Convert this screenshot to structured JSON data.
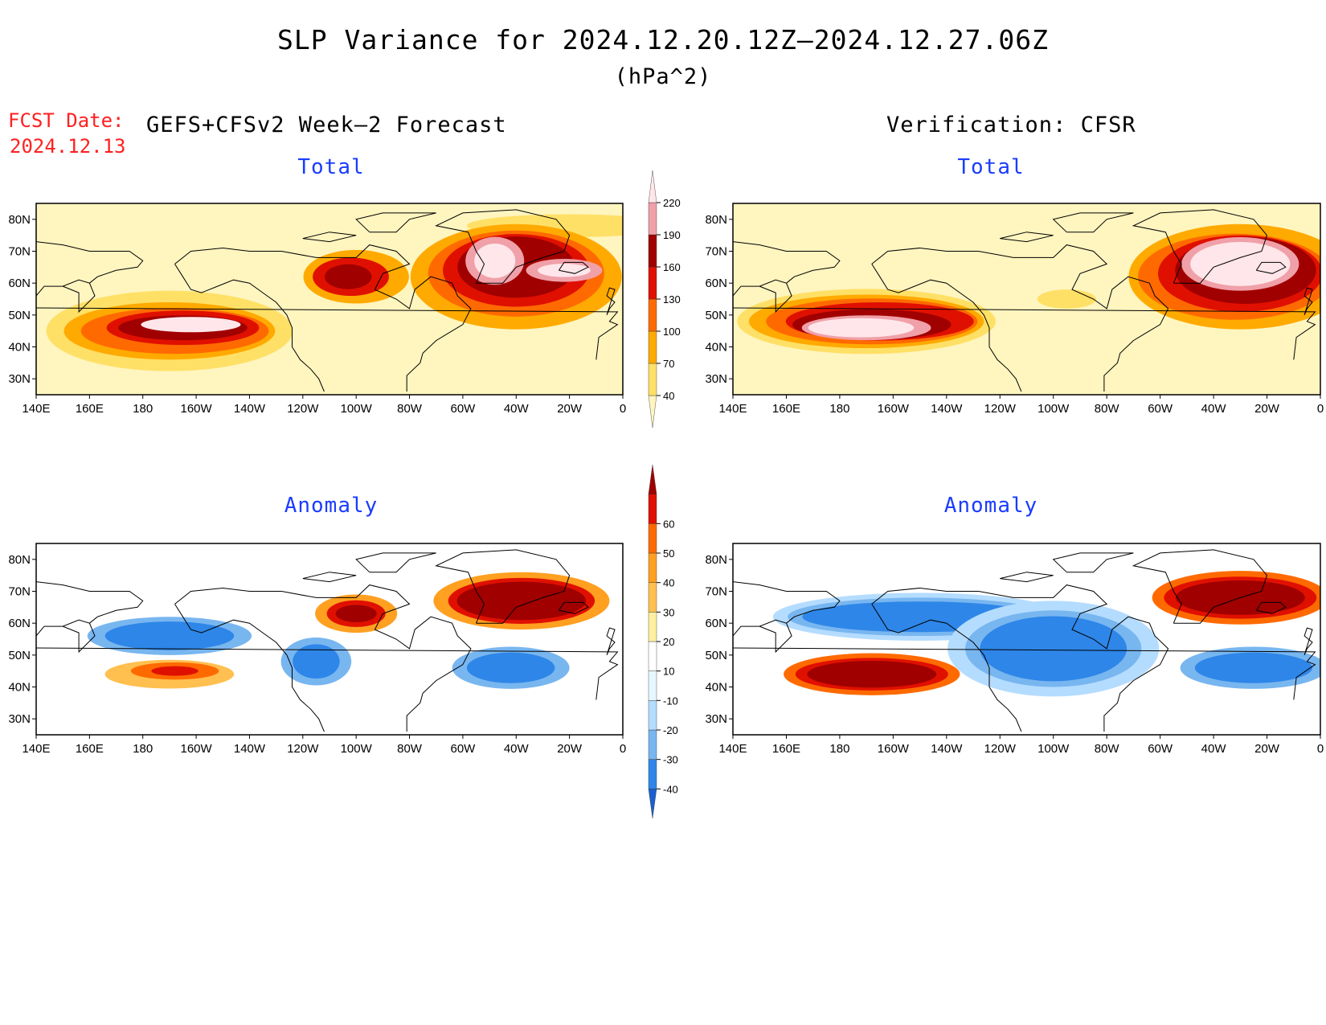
{
  "title": "SLP Variance for 2024.12.20.12Z–2024.12.27.06Z",
  "units": "(hPa^2)",
  "fcst_date_label": "FCST Date:",
  "fcst_date_value": "2024.12.13",
  "forecast_heading": "GEFS+CFSv2 Week–2 Forecast",
  "verification_heading": "Verification: CFSR",
  "panel_titles": {
    "total": "Total",
    "anomaly": "Anomaly"
  },
  "lat_labels": [
    "80N",
    "70N",
    "60N",
    "50N",
    "40N",
    "30N"
  ],
  "lon_labels": [
    "140E",
    "160E",
    "180",
    "160W",
    "140W",
    "120W",
    "100W",
    "80W",
    "60W",
    "40W",
    "20W",
    "0"
  ],
  "colorbars": {
    "total": {
      "levels": [
        "40",
        "70",
        "100",
        "130",
        "160",
        "190",
        "220"
      ],
      "colors": [
        "#fff5bf",
        "#ffe066",
        "#ffaa00",
        "#ff6a00",
        "#e01000",
        "#a00000",
        "#f0a0a8",
        "#ffe6ea"
      ]
    },
    "anomaly": {
      "levels": [
        "-40",
        "-30",
        "-20",
        "-10",
        "10",
        "20",
        "30",
        "40",
        "50",
        "60"
      ],
      "colors": [
        "#1a60d0",
        "#2e86e8",
        "#78b6f0",
        "#b4dcff",
        "#e6f8ff",
        "#ffffff",
        "#fff0a0",
        "#ffc050",
        "#ffa020",
        "#ff6a00",
        "#e01000",
        "#a00000"
      ]
    }
  },
  "palette": {
    "land_outline": "#000000",
    "title_red": "#ff2020",
    "subtitle_blue": "#1a3cff"
  },
  "fields": {
    "fc_total": [
      {
        "lon": -20,
        "lat": 78,
        "w": 0.35,
        "h": 0.12,
        "level": 1
      },
      {
        "lon": -170,
        "lat": 45,
        "w": 0.42,
        "h": 0.42,
        "level": 1
      },
      {
        "lon": -170,
        "lat": 45,
        "w": 0.36,
        "h": 0.3,
        "level": 2
      },
      {
        "lon": -168,
        "lat": 45,
        "w": 0.32,
        "h": 0.24,
        "level": 3
      },
      {
        "lon": -165,
        "lat": 46,
        "w": 0.26,
        "h": 0.18,
        "level": 4
      },
      {
        "lon": -165,
        "lat": 46,
        "w": 0.22,
        "h": 0.13,
        "level": 5
      },
      {
        "lon": -162,
        "lat": 47,
        "w": 0.17,
        "h": 0.08,
        "level": 7
      },
      {
        "lon": -100,
        "lat": 62,
        "w": 0.18,
        "h": 0.28,
        "level": 2
      },
      {
        "lon": -102,
        "lat": 62,
        "w": 0.13,
        "h": 0.2,
        "level": 4
      },
      {
        "lon": -103,
        "lat": 62,
        "w": 0.08,
        "h": 0.13,
        "level": 5
      },
      {
        "lon": -40,
        "lat": 62,
        "w": 0.36,
        "h": 0.55,
        "level": 2
      },
      {
        "lon": -40,
        "lat": 63,
        "w": 0.3,
        "h": 0.45,
        "level": 3
      },
      {
        "lon": -40,
        "lat": 64,
        "w": 0.25,
        "h": 0.38,
        "level": 4
      },
      {
        "lon": -40,
        "lat": 65,
        "w": 0.2,
        "h": 0.32,
        "level": 5
      },
      {
        "lon": -48,
        "lat": 67,
        "w": 0.1,
        "h": 0.25,
        "level": 6
      },
      {
        "lon": -48,
        "lat": 67,
        "w": 0.07,
        "h": 0.18,
        "level": 7
      },
      {
        "lon": -22,
        "lat": 64,
        "w": 0.13,
        "h": 0.12,
        "level": 6
      },
      {
        "lon": -22,
        "lat": 64,
        "w": 0.09,
        "h": 0.07,
        "level": 7
      }
    ],
    "vf_total": [
      {
        "lon": -170,
        "lat": 48,
        "w": 0.44,
        "h": 0.34,
        "level": 1
      },
      {
        "lon": -170,
        "lat": 48,
        "w": 0.4,
        "h": 0.28,
        "level": 2
      },
      {
        "lon": -168,
        "lat": 48,
        "w": 0.36,
        "h": 0.24,
        "level": 3
      },
      {
        "lon": -165,
        "lat": 48,
        "w": 0.32,
        "h": 0.2,
        "level": 4
      },
      {
        "lon": -168,
        "lat": 47,
        "w": 0.27,
        "h": 0.16,
        "level": 5
      },
      {
        "lon": -170,
        "lat": 46,
        "w": 0.22,
        "h": 0.13,
        "level": 6
      },
      {
        "lon": -172,
        "lat": 46,
        "w": 0.18,
        "h": 0.1,
        "level": 7
      },
      {
        "lon": -95,
        "lat": 55,
        "w": 0.1,
        "h": 0.1,
        "level": 1
      },
      {
        "lon": -30,
        "lat": 62,
        "w": 0.38,
        "h": 0.55,
        "level": 2
      },
      {
        "lon": -32,
        "lat": 62,
        "w": 0.33,
        "h": 0.45,
        "level": 3
      },
      {
        "lon": -30,
        "lat": 63,
        "w": 0.28,
        "h": 0.4,
        "level": 4
      },
      {
        "lon": -28,
        "lat": 64,
        "w": 0.24,
        "h": 0.35,
        "level": 5
      },
      {
        "lon": -30,
        "lat": 66,
        "w": 0.2,
        "h": 0.28,
        "level": 6
      },
      {
        "lon": -30,
        "lat": 66,
        "w": 0.17,
        "h": 0.23,
        "level": 7
      }
    ],
    "fc_anom": [
      {
        "lon": -170,
        "lat": 56,
        "w": 0.28,
        "h": 0.2,
        "level": 2
      },
      {
        "lon": -170,
        "lat": 56,
        "w": 0.22,
        "h": 0.15,
        "level": 1
      },
      {
        "lon": -115,
        "lat": 48,
        "w": 0.12,
        "h": 0.25,
        "level": 2
      },
      {
        "lon": -115,
        "lat": 48,
        "w": 0.08,
        "h": 0.18,
        "level": 1
      },
      {
        "lon": -42,
        "lat": 46,
        "w": 0.2,
        "h": 0.22,
        "level": 2
      },
      {
        "lon": -42,
        "lat": 46,
        "w": 0.15,
        "h": 0.16,
        "level": 1
      },
      {
        "lon": -170,
        "lat": 44,
        "w": 0.22,
        "h": 0.15,
        "level": 7
      },
      {
        "lon": -168,
        "lat": 45,
        "w": 0.15,
        "h": 0.09,
        "level": 9
      },
      {
        "lon": -168,
        "lat": 45,
        "w": 0.08,
        "h": 0.05,
        "level": 10
      },
      {
        "lon": -100,
        "lat": 63,
        "w": 0.14,
        "h": 0.2,
        "level": 8
      },
      {
        "lon": -100,
        "lat": 63,
        "w": 0.1,
        "h": 0.14,
        "level": 10
      },
      {
        "lon": -100,
        "lat": 63,
        "w": 0.07,
        "h": 0.09,
        "level": 11
      },
      {
        "lon": -38,
        "lat": 67,
        "w": 0.3,
        "h": 0.3,
        "level": 8
      },
      {
        "lon": -38,
        "lat": 67,
        "w": 0.25,
        "h": 0.24,
        "level": 10
      },
      {
        "lon": -38,
        "lat": 67,
        "w": 0.22,
        "h": 0.2,
        "level": 11
      }
    ],
    "vf_anom": [
      {
        "lon": -150,
        "lat": 62,
        "w": 0.5,
        "h": 0.25,
        "level": 3
      },
      {
        "lon": -150,
        "lat": 62,
        "w": 0.45,
        "h": 0.2,
        "level": 2
      },
      {
        "lon": -150,
        "lat": 62,
        "w": 0.4,
        "h": 0.16,
        "level": 1
      },
      {
        "lon": -100,
        "lat": 52,
        "w": 0.36,
        "h": 0.5,
        "level": 3
      },
      {
        "lon": -100,
        "lat": 52,
        "w": 0.3,
        "h": 0.4,
        "level": 2
      },
      {
        "lon": -100,
        "lat": 52,
        "w": 0.25,
        "h": 0.34,
        "level": 1
      },
      {
        "lon": -25,
        "lat": 46,
        "w": 0.25,
        "h": 0.22,
        "level": 2
      },
      {
        "lon": -25,
        "lat": 46,
        "w": 0.2,
        "h": 0.16,
        "level": 1
      },
      {
        "lon": -168,
        "lat": 44,
        "w": 0.3,
        "h": 0.22,
        "level": 9
      },
      {
        "lon": -168,
        "lat": 44,
        "w": 0.26,
        "h": 0.17,
        "level": 10
      },
      {
        "lon": -168,
        "lat": 44,
        "w": 0.22,
        "h": 0.14,
        "level": 11
      },
      {
        "lon": -30,
        "lat": 68,
        "w": 0.3,
        "h": 0.28,
        "level": 9
      },
      {
        "lon": -30,
        "lat": 68,
        "w": 0.26,
        "h": 0.22,
        "level": 10
      },
      {
        "lon": -30,
        "lat": 68,
        "w": 0.22,
        "h": 0.18,
        "level": 11
      }
    ]
  }
}
